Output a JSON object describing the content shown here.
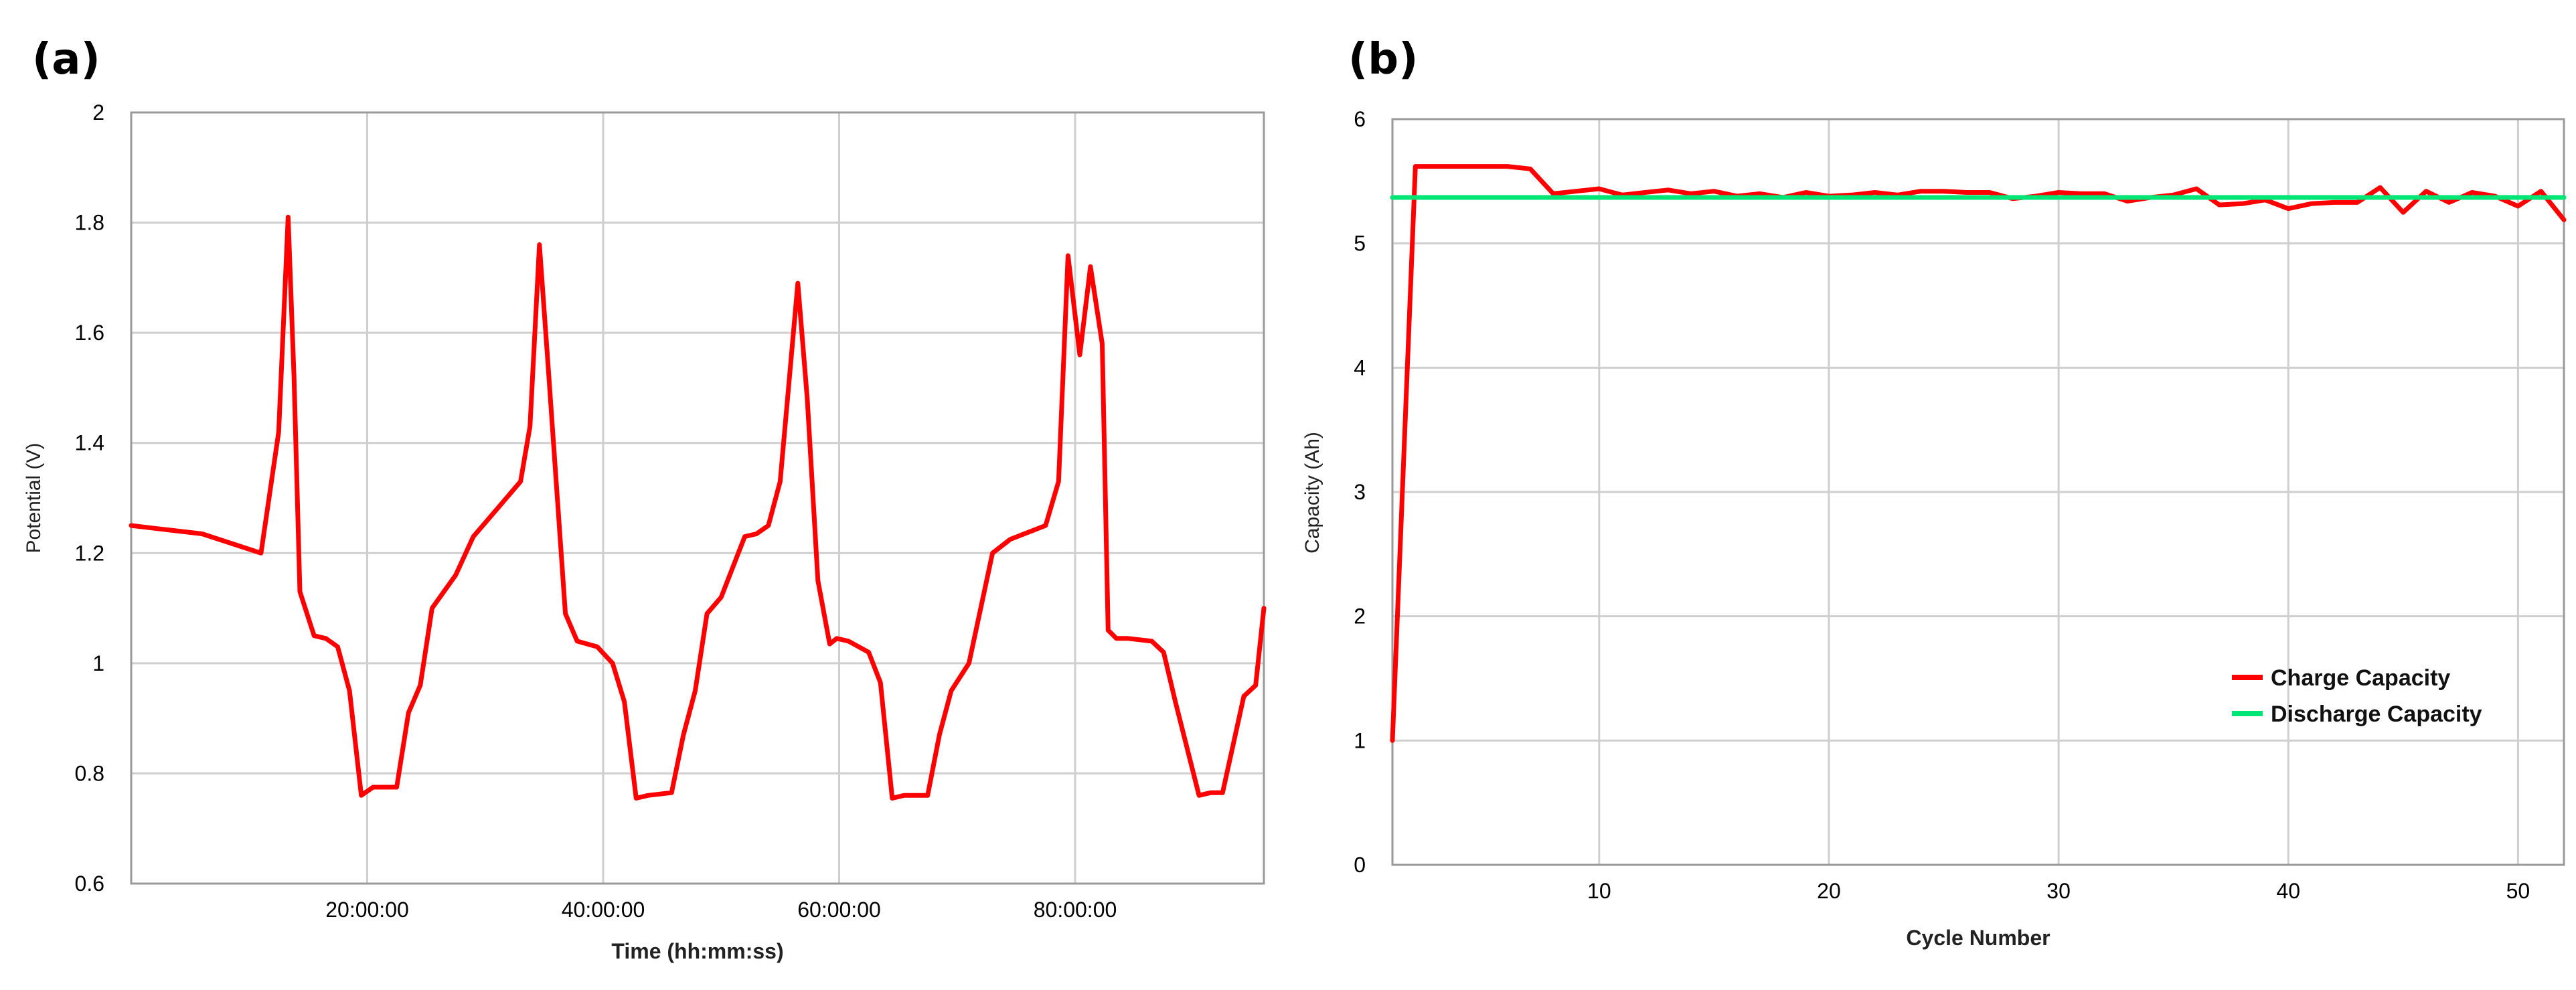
{
  "chart_data": [
    {
      "panel_label": "(a)",
      "type": "line",
      "title": "",
      "xlabel": "Time (hh:mm:ss)",
      "ylabel": "Potential (V)",
      "xlim_hours": [
        0,
        96
      ],
      "ylim": [
        0.6,
        2
      ],
      "grid": true,
      "x_ticks": [
        20,
        40,
        60,
        80
      ],
      "x_tick_labels": [
        "20:00:00",
        "40:00:00",
        "60:00:00",
        "80:00:00"
      ],
      "y_ticks": [
        0.6,
        0.8,
        1,
        1.2,
        1.4,
        1.6,
        1.8,
        2
      ],
      "y_tick_labels": [
        "0.6",
        "0.8",
        "1",
        "1.2",
        "1.4",
        "1.6",
        "1.8",
        "2"
      ],
      "series": [
        {
          "color": "#ff0000",
          "x": [
            0,
            2,
            6,
            11,
            12.5,
            13.3,
            13.8,
            14.3,
            15.5,
            16.5,
            17.5,
            18.5,
            19.5,
            20.5,
            22.5,
            23.5,
            24.5,
            25.5,
            27.5,
            29,
            31,
            33,
            33.8,
            34.6,
            35.3,
            36.8,
            37.8,
            39.5,
            40.8,
            41.8,
            42.8,
            43.8,
            45.8,
            46.8,
            47.8,
            48.8,
            50,
            52,
            53,
            54,
            55,
            56.5,
            57.3,
            58.2,
            59.2,
            59.8,
            60.8,
            62.5,
            63.5,
            64.5,
            65.5,
            67.5,
            68.5,
            69.5,
            71,
            72,
            73,
            74.5,
            77.5,
            78.6,
            79.4,
            80.4,
            81.3,
            82.3,
            82.8,
            83.5,
            84.5,
            86.5,
            87.5,
            88.5,
            90.5,
            91.5,
            92.5,
            94.3,
            95.3,
            96
          ],
          "y": [
            1.25,
            1.245,
            1.235,
            1.2,
            1.42,
            1.81,
            1.52,
            1.13,
            1.05,
            1.045,
            1.03,
            0.95,
            0.76,
            0.775,
            0.775,
            0.91,
            0.96,
            1.1,
            1.16,
            1.23,
            1.28,
            1.33,
            1.43,
            1.76,
            1.55,
            1.09,
            1.04,
            1.03,
            1.0,
            0.93,
            0.755,
            0.76,
            0.765,
            0.87,
            0.95,
            1.09,
            1.12,
            1.23,
            1.235,
            1.25,
            1.33,
            1.69,
            1.48,
            1.15,
            1.035,
            1.045,
            1.04,
            1.02,
            0.965,
            0.755,
            0.76,
            0.76,
            0.87,
            0.95,
            1.0,
            1.1,
            1.2,
            1.225,
            1.25,
            1.33,
            1.74,
            1.56,
            1.72,
            1.58,
            1.06,
            1.045,
            1.045,
            1.04,
            1.02,
            0.93,
            0.76,
            0.765,
            0.765,
            0.94,
            0.96,
            1.1
          ]
        }
      ]
    },
    {
      "panel_label": "(b)",
      "type": "line",
      "title": "",
      "xlabel": "Cycle Number",
      "ylabel": "Capacity (Ah)",
      "xlim": [
        1,
        52
      ],
      "ylim": [
        0,
        6
      ],
      "grid": true,
      "x_ticks": [
        10,
        20,
        30,
        40,
        50
      ],
      "x_tick_labels": [
        "10",
        "20",
        "30",
        "40",
        "50"
      ],
      "y_ticks": [
        0,
        1,
        2,
        3,
        4,
        5,
        6
      ],
      "y_tick_labels": [
        "0",
        "1",
        "2",
        "3",
        "4",
        "5",
        "6"
      ],
      "legend_position": "lower-right",
      "series": [
        {
          "name": "Charge Capacity",
          "color": "#ff0000",
          "x": [
            1,
            2,
            3,
            4,
            5,
            6,
            7,
            8,
            9,
            10,
            11,
            12,
            13,
            14,
            15,
            16,
            17,
            18,
            19,
            20,
            21,
            22,
            23,
            24,
            25,
            26,
            27,
            28,
            29,
            30,
            31,
            32,
            33,
            34,
            35,
            36,
            37,
            38,
            39,
            40,
            41,
            42,
            43,
            44,
            45,
            46,
            47,
            48,
            49,
            50,
            51,
            52
          ],
          "y": [
            1.0,
            5.62,
            5.62,
            5.62,
            5.62,
            5.62,
            5.6,
            5.4,
            5.42,
            5.44,
            5.39,
            5.41,
            5.43,
            5.4,
            5.42,
            5.38,
            5.4,
            5.37,
            5.41,
            5.38,
            5.39,
            5.41,
            5.39,
            5.42,
            5.42,
            5.41,
            5.41,
            5.36,
            5.38,
            5.41,
            5.4,
            5.4,
            5.34,
            5.37,
            5.39,
            5.44,
            5.31,
            5.32,
            5.35,
            5.28,
            5.32,
            5.33,
            5.33,
            5.45,
            5.25,
            5.42,
            5.33,
            5.41,
            5.38,
            5.3,
            5.42,
            5.19
          ]
        },
        {
          "name": "Discharge Capacity",
          "color": "#00e676",
          "x": [
            1,
            52
          ],
          "y": [
            5.37,
            5.37
          ]
        }
      ]
    }
  ]
}
